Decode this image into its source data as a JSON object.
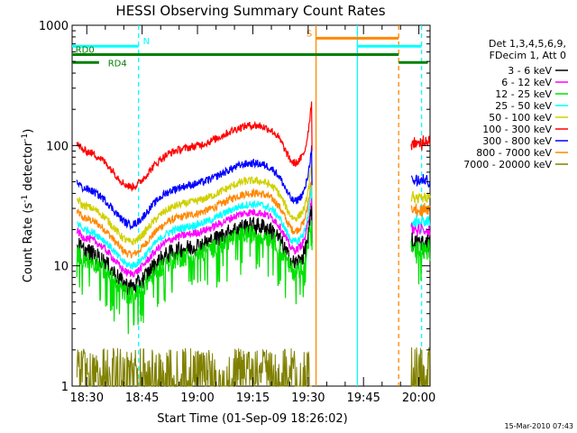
{
  "chart_data": {
    "type": "line",
    "title": "HESSI Observing Summary Count Rates",
    "xlabel": "Start Time (01-Sep-09 18:26:02)",
    "ylabel_prefix": "Count Rate (s",
    "ylabel_sup": "-1",
    "ylabel_suffix": " detector",
    "ylabel_close": ")",
    "x_unit": "minutes since 18:26:02",
    "xlim": [
      0,
      97
    ],
    "ylim": [
      1,
      1000
    ],
    "yscale": "log",
    "x_ticks": [
      {
        "v": 3.97,
        "label": "18:30"
      },
      {
        "v": 18.97,
        "label": "18:45"
      },
      {
        "v": 33.97,
        "label": "19:00"
      },
      {
        "v": 48.97,
        "label": "19:15"
      },
      {
        "v": 63.97,
        "label": "19:30"
      },
      {
        "v": 78.97,
        "label": "19:45"
      },
      {
        "v": 93.97,
        "label": "20:00"
      }
    ],
    "y_ticks": [
      {
        "v": 1,
        "label": "1"
      },
      {
        "v": 10,
        "label": "10"
      },
      {
        "v": 100,
        "label": "100"
      },
      {
        "v": 1000,
        "label": "1000"
      }
    ],
    "legend_header": [
      "Det 1,3,4,5,6,9,",
      "FDecim 1, Att 0"
    ],
    "series": [
      {
        "name": "3 - 6 keV",
        "color": "#000000",
        "base": 14
      },
      {
        "name": "6 - 12 keV",
        "color": "#ff00ff",
        "base": 18
      },
      {
        "name": "12 - 25 keV",
        "color": "#00e000",
        "base": 12
      },
      {
        "name": "25 - 50 keV",
        "color": "#00ffff",
        "base": 21
      },
      {
        "name": "50 - 100 keV",
        "color": "#d0d000",
        "base": 33
      },
      {
        "name": "100 - 300 keV",
        "color": "#ff0000",
        "base": 95
      },
      {
        "name": "300 - 800 keV",
        "color": "#0000ff",
        "base": 46
      },
      {
        "name": "800 - 7000 keV",
        "color": "#ff8800",
        "base": 26
      },
      {
        "name": "7000 - 20000 keV",
        "color": "#808000",
        "base": 1.8
      }
    ],
    "data_gaps": [
      [
        -0.5,
        1.3
      ],
      [
        65.1,
        91.9
      ]
    ],
    "vertical_lines": [
      {
        "x": 18.0,
        "color": "#00ffff",
        "style": "dashed"
      },
      {
        "x": 66.1,
        "color": "#ff8800",
        "style": "solid"
      },
      {
        "x": 77.3,
        "color": "#00ffff",
        "style": "solid"
      },
      {
        "x": 88.5,
        "color": "#ff8800",
        "style": "dashed"
      },
      {
        "x": 94.7,
        "color": "#00ffff",
        "style": "dashed"
      }
    ],
    "flags": [
      {
        "label": "N",
        "color": "#00ffff",
        "y": 670,
        "segments": [
          [
            0,
            18
          ]
        ],
        "label_x": 19.2
      },
      {
        "label": "S",
        "color": "#ff8800",
        "y": 780,
        "segments": [
          [
            66.1,
            88.5
          ]
        ],
        "label_x": 63.5
      },
      {
        "label": "",
        "color": "#00ffff",
        "y": 670,
        "segments": [
          [
            77.3,
            94.7
          ]
        ],
        "label_x": null
      },
      {
        "label": "RD0",
        "color": "#008000",
        "y": 570,
        "segments": [
          [
            0,
            88.5
          ]
        ],
        "label_x": 0.9
      },
      {
        "label": "RD4",
        "color": "#008000",
        "y": 490,
        "segments": [
          [
            0,
            7.3
          ],
          [
            88.5,
            96.4
          ]
        ],
        "label_x": 9.7
      }
    ],
    "timestamp": "15-Mar-2010 07:43"
  }
}
